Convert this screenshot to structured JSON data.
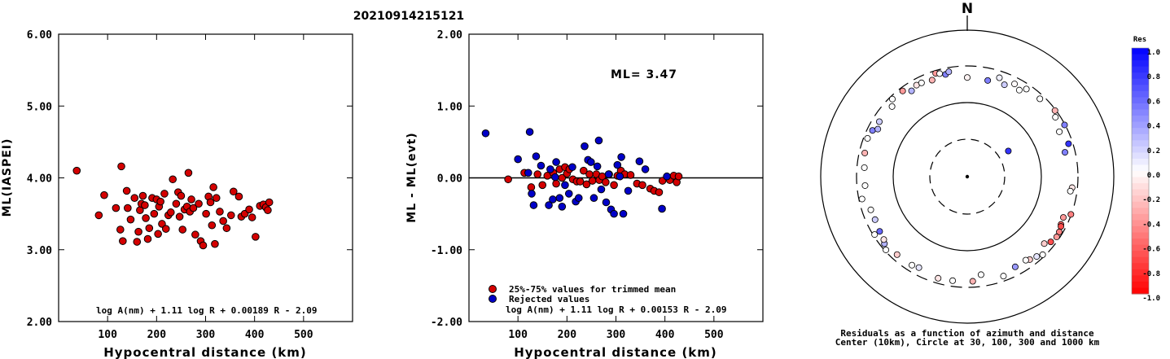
{
  "header": {
    "event_id": "20210914215121"
  },
  "chart_data": [
    {
      "type": "scatter",
      "id": "ml-vs-distance",
      "xlabel": "Hypocentral distance (km)",
      "ylabel": "ML(IASPEI)",
      "xlim": [
        0,
        600
      ],
      "ylim": [
        2.0,
        6.0
      ],
      "xticks": [
        "100",
        "200",
        "300",
        "400",
        "500"
      ],
      "xtick_values": [
        100,
        200,
        300,
        400,
        500
      ],
      "yticks": [
        "2.00",
        "3.00",
        "4.00",
        "5.00",
        "6.00"
      ],
      "ytick_values": [
        2,
        3,
        4,
        5,
        6
      ],
      "formula": "log A(nm) + 1.11 log R + 0.00189 R - 2.09",
      "marker_color": "#d40000",
      "series": [
        {
          "points": [
            [
              37,
              4.1
            ],
            [
              82,
              3.48
            ],
            [
              93,
              3.76
            ],
            [
              117,
              3.58
            ],
            [
              126,
              3.28
            ],
            [
              128,
              4.16
            ],
            [
              131,
              3.12
            ],
            [
              139,
              3.82
            ],
            [
              141,
              3.58
            ],
            [
              147,
              3.42
            ],
            [
              155,
              3.72
            ],
            [
              160,
              3.11
            ],
            [
              163,
              3.25
            ],
            [
              166,
              3.55
            ],
            [
              169,
              3.64
            ],
            [
              172,
              3.75
            ],
            [
              176,
              3.62
            ],
            [
              178,
              3.44
            ],
            [
              182,
              3.15
            ],
            [
              185,
              3.3
            ],
            [
              191,
              3.72
            ],
            [
              195,
              3.5
            ],
            [
              200,
              3.7
            ],
            [
              203,
              3.22
            ],
            [
              205,
              3.6
            ],
            [
              208,
              3.67
            ],
            [
              211,
              3.36
            ],
            [
              216,
              3.78
            ],
            [
              219,
              3.29
            ],
            [
              224,
              3.48
            ],
            [
              229,
              3.52
            ],
            [
              233,
              3.98
            ],
            [
              240,
              3.64
            ],
            [
              244,
              3.8
            ],
            [
              247,
              3.46
            ],
            [
              250,
              3.75
            ],
            [
              253,
              3.28
            ],
            [
              257,
              3.56
            ],
            [
              262,
              3.6
            ],
            [
              265,
              4.07
            ],
            [
              268,
              3.53
            ],
            [
              271,
              3.7
            ],
            [
              275,
              3.58
            ],
            [
              279,
              3.21
            ],
            [
              286,
              3.64
            ],
            [
              290,
              3.12
            ],
            [
              295,
              3.06
            ],
            [
              301,
              3.5
            ],
            [
              306,
              3.74
            ],
            [
              310,
              3.66
            ],
            [
              313,
              3.34
            ],
            [
              316,
              3.87
            ],
            [
              319,
              3.08
            ],
            [
              322,
              3.72
            ],
            [
              329,
              3.53
            ],
            [
              336,
              3.4
            ],
            [
              343,
              3.3
            ],
            [
              352,
              3.48
            ],
            [
              357,
              3.81
            ],
            [
              368,
              3.74
            ],
            [
              373,
              3.46
            ],
            [
              380,
              3.5
            ],
            [
              389,
              3.56
            ],
            [
              395,
              3.45
            ],
            [
              402,
              3.18
            ],
            [
              411,
              3.61
            ],
            [
              418,
              3.63
            ],
            [
              423,
              3.59
            ],
            [
              427,
              3.55
            ],
            [
              430,
              3.66
            ]
          ]
        }
      ]
    },
    {
      "type": "scatter",
      "id": "residual-vs-distance",
      "xlabel": "Hypocentral distance (km)",
      "ylabel": "ML - ML(evt)",
      "xlim": [
        0,
        600
      ],
      "ylim": [
        -2.0,
        2.0
      ],
      "xticks": [
        "100",
        "200",
        "300",
        "400",
        "500"
      ],
      "xtick_values": [
        100,
        200,
        300,
        400,
        500
      ],
      "yticks": [
        "-2.00",
        "-1.00",
        "0.00",
        "1.00",
        "2.00"
      ],
      "ytick_values": [
        -2,
        -1,
        0,
        1,
        2
      ],
      "reference_line": 0,
      "ml_label": "ML= 3.47",
      "formula": "log A(nm) + 1.11 log R + 0.00153 R - 2.09",
      "series": [
        {
          "name": "25%-75% values for trimmed mean",
          "color": "#d40000",
          "points": [
            [
              80,
              -0.02
            ],
            [
              113,
              0.07
            ],
            [
              127,
              -0.13
            ],
            [
              140,
              0.05
            ],
            [
              150,
              -0.1
            ],
            [
              160,
              0.03
            ],
            [
              172,
              0.07
            ],
            [
              178,
              -0.08
            ],
            [
              185,
              0.12
            ],
            [
              190,
              0.0
            ],
            [
              196,
              0.15
            ],
            [
              200,
              0.06
            ],
            [
              205,
              0.12
            ],
            [
              212,
              -0.02
            ],
            [
              220,
              -0.05
            ],
            [
              227,
              -0.05
            ],
            [
              234,
              0.1
            ],
            [
              240,
              -0.09
            ],
            [
              246,
              0.05
            ],
            [
              252,
              -0.04
            ],
            [
              260,
              0.05
            ],
            [
              266,
              -0.03
            ],
            [
              272,
              0.02
            ],
            [
              279,
              -0.06
            ],
            [
              286,
              0.05
            ],
            [
              296,
              -0.1
            ],
            [
              303,
              0.03
            ],
            [
              310,
              0.1
            ],
            [
              318,
              0.05
            ],
            [
              330,
              0.04
            ],
            [
              343,
              -0.08
            ],
            [
              354,
              -0.1
            ],
            [
              370,
              -0.15
            ],
            [
              378,
              -0.18
            ],
            [
              388,
              -0.2
            ],
            [
              395,
              -0.04
            ],
            [
              410,
              -0.03
            ],
            [
              418,
              0.03
            ],
            [
              424,
              -0.06
            ],
            [
              428,
              0.02
            ]
          ]
        },
        {
          "name": "Rejected values",
          "color": "#0000c8",
          "points": [
            [
              34,
              0.62
            ],
            [
              124,
              0.64
            ],
            [
              132,
              -0.38
            ],
            [
              137,
              0.3
            ],
            [
              128,
              -0.22
            ],
            [
              147,
              0.17
            ],
            [
              163,
              -0.38
            ],
            [
              166,
              0.12
            ],
            [
              171,
              -0.3
            ],
            [
              178,
              0.22
            ],
            [
              185,
              -0.28
            ],
            [
              190,
              -0.4
            ],
            [
              196,
              -0.1
            ],
            [
              204,
              -0.22
            ],
            [
              211,
              0.15
            ],
            [
              218,
              -0.33
            ],
            [
              224,
              -0.28
            ],
            [
              236,
              0.44
            ],
            [
              243,
              0.25
            ],
            [
              249,
              0.22
            ],
            [
              255,
              -0.28
            ],
            [
              262,
              0.16
            ],
            [
              265,
              0.52
            ],
            [
              270,
              -0.16
            ],
            [
              280,
              -0.34
            ],
            [
              285,
              0.05
            ],
            [
              290,
              -0.44
            ],
            [
              296,
              -0.5
            ],
            [
              303,
              0.18
            ],
            [
              311,
              0.29
            ],
            [
              315,
              -0.5
            ],
            [
              325,
              -0.18
            ],
            [
              348,
              0.23
            ],
            [
              360,
              0.12
            ],
            [
              394,
              -0.43
            ],
            [
              404,
              0.02
            ],
            [
              100,
              0.26
            ],
            [
              121,
              0.07
            ],
            [
              176,
              0.01
            ],
            [
              308,
              0.02
            ]
          ]
        }
      ],
      "legend": [
        {
          "label": "25%-75% values for trimmed mean",
          "color": "#d40000"
        },
        {
          "label": "Rejected values",
          "color": "#0000c8"
        }
      ]
    },
    {
      "type": "scatter",
      "id": "azimuth-polar",
      "north_label": "N",
      "caption_line1": "Residuals as a function of azimuth and distance",
      "caption_line2": "Center (10km), Circle at 30, 100, 300 and 1000 km",
      "ring_radii_km": [
        30,
        100,
        300,
        1000
      ],
      "dashed_rings_km": [
        30,
        300
      ],
      "colorbar": {
        "title": "Res",
        "labels": [
          "1.0",
          "0.8",
          "0.6",
          "0.4",
          "0.2",
          "0.0",
          "-0.2",
          "-0.4",
          "-0.6",
          "-0.8",
          "-1.0"
        ],
        "values": [
          1.0,
          0.8,
          0.6,
          0.4,
          0.2,
          0.0,
          -0.2,
          -0.4,
          -0.6,
          -0.8,
          -1.0
        ]
      },
      "points_azimuth_deg_distance_km_residual": [
        [
          0,
          212,
          -0.05
        ],
        [
          12,
          207,
          0.5
        ],
        [
          18,
          245,
          0.06
        ],
        [
          22,
          212,
          0.2
        ],
        [
          27,
          246,
          -0.02
        ],
        [
          31,
          224,
          0.0
        ],
        [
          34,
          258,
          0.0
        ],
        [
          43,
          264,
          0.0
        ],
        [
          53,
          292,
          -0.3
        ],
        [
          58,
          43,
          0.8
        ],
        [
          56,
          263,
          0.0
        ],
        [
          62,
          295,
          0.5
        ],
        [
          64,
          234,
          0.0
        ],
        [
          72,
          264,
          0.8
        ],
        [
          76,
          222,
          0.5
        ],
        [
          96,
          256,
          -0.1
        ],
        [
          98,
          246,
          0.0
        ],
        [
          110,
          296,
          -0.5
        ],
        [
          113,
          248,
          -0.4
        ],
        [
          117,
          254,
          -0.6
        ],
        [
          118,
          261,
          -0.7
        ],
        [
          121,
          271,
          -0.5
        ],
        [
          124,
          275,
          -0.4
        ],
        [
          128,
          260,
          -0.7
        ],
        [
          131,
          231,
          -0.2
        ],
        [
          136,
          281,
          0.0
        ],
        [
          139,
          259,
          0.1
        ],
        [
          143,
          244,
          -0.2
        ],
        [
          145,
          231,
          0.0
        ],
        [
          152,
          232,
          0.4
        ],
        [
          160,
          259,
          0.0
        ],
        [
          172,
          211,
          0.0
        ],
        [
          177,
          251,
          -0.3
        ],
        [
          188,
          253,
          0.0
        ],
        [
          196,
          258,
          -0.1
        ],
        [
          208,
          238,
          0.1
        ],
        [
          212,
          248,
          0.0
        ],
        [
          222,
          252,
          -0.2
        ],
        [
          228,
          289,
          0.0
        ],
        [
          231,
          265,
          0.3
        ],
        [
          233,
          249,
          -0.1
        ],
        [
          238,
          240,
          0.6
        ],
        [
          238,
          287,
          0.0
        ],
        [
          245,
          229,
          0.2
        ],
        [
          251,
          231,
          0.0
        ],
        [
          258,
          273,
          0.0
        ],
        [
          265,
          235,
          0.0
        ],
        [
          275,
          240,
          0.0
        ],
        [
          283,
          254,
          -0.3
        ],
        [
          291,
          267,
          0.0
        ],
        [
          296,
          256,
          0.5
        ],
        [
          298,
          226,
          0.3
        ],
        [
          302,
          243,
          0.2
        ],
        [
          313,
          237,
          0.0
        ],
        [
          316,
          275,
          0.0
        ],
        [
          323,
          271,
          -0.4
        ],
        [
          327,
          233,
          0.3
        ],
        [
          331,
          250,
          -0.1
        ],
        [
          334,
          248,
          0.0
        ],
        [
          340,
          236,
          -0.3
        ],
        [
          343,
          277,
          -0.4
        ],
        [
          345,
          266,
          0.0
        ],
        [
          348,
          249,
          0.5
        ],
        [
          350,
          264,
          0.3
        ]
      ]
    }
  ]
}
